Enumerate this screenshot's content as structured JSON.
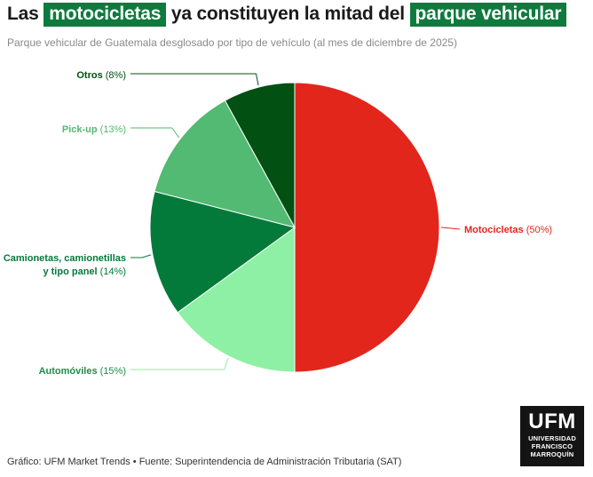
{
  "header": {
    "title_part1": "Las ",
    "title_highlight1": "motocicletas",
    "title_part2": " ya constituyen la mitad del ",
    "title_highlight2": "parque vehicular",
    "subtitle": "Parque vehicular de Guatemala desglosado por tipo de vehículo (al mes de diciembre de 2025)"
  },
  "footer": {
    "source": "Gráfico: UFM Market Trends • Fuente: Superintendencia de Administración Tributaria (SAT)"
  },
  "logo": {
    "line1": "UFM",
    "line2": "UNIVERSIDAD",
    "line3": "FRANCISCO",
    "line4": "MARROQUÍN"
  },
  "colors": {
    "highlight": "#0f7a3e",
    "moto": "#e2261c",
    "autos": "#8ef0a4",
    "camionetas": "#047a3a",
    "pickup": "#52ba72",
    "otros": "#025012"
  },
  "chart_data": {
    "type": "pie",
    "title": "Parque vehicular de Guatemala desglosado por tipo de vehículo (al mes de diciembre de 2025)",
    "unit": "%",
    "slices": [
      {
        "name": "Motocicletas",
        "value": 50,
        "label": "(50%)",
        "color": "#e2261c"
      },
      {
        "name": "Automóviles",
        "value": 15,
        "label": "(15%)",
        "color": "#8ef0a4"
      },
      {
        "name": "Camionetas, camionetillas y tipo panel",
        "name_line1": "Camionetas, camionetillas",
        "name_line2": "y tipo panel",
        "value": 14,
        "label": "(14%)",
        "color": "#047a3a"
      },
      {
        "name": "Pick-up",
        "value": 13,
        "label": "(13%)",
        "color": "#52ba72"
      },
      {
        "name": "Otros",
        "value": 8,
        "label": "(8%)",
        "color": "#025012"
      }
    ]
  }
}
